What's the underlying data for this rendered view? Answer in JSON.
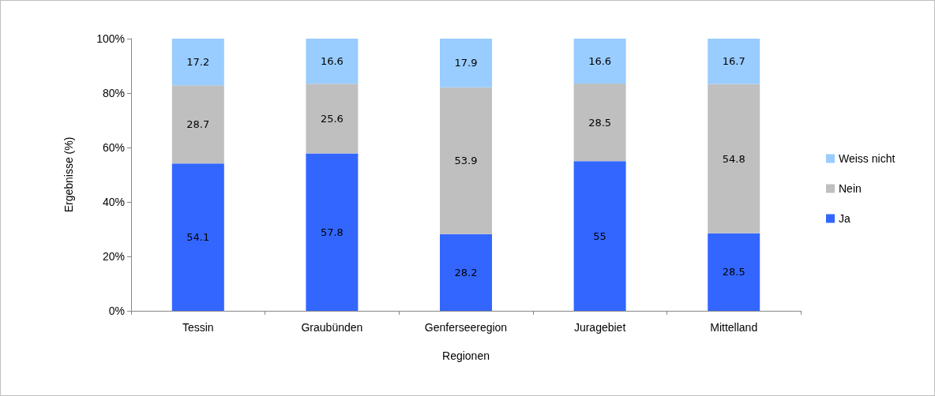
{
  "chart_data": {
    "type": "bar",
    "stacked": true,
    "xlabel": "Regionen",
    "ylabel": "Ergebnisse (%)",
    "categories": [
      "Tessin",
      "Graubünden",
      "Genferseeregion",
      "Juragebiet",
      "Mittelland"
    ],
    "series": [
      {
        "name": "Ja",
        "color": "#3366ff",
        "values": [
          54.1,
          57.8,
          28.2,
          55,
          28.5
        ]
      },
      {
        "name": "Nein",
        "color": "#bfbfbf",
        "values": [
          28.7,
          25.6,
          53.9,
          28.5,
          54.8
        ]
      },
      {
        "name": "Weiss nicht",
        "color": "#99ccff",
        "values": [
          17.2,
          16.6,
          17.9,
          16.6,
          16.7
        ]
      }
    ],
    "ylim": [
      0,
      100
    ],
    "yticks": [
      {
        "value": 0,
        "label": "0%"
      },
      {
        "value": 20,
        "label": "20%"
      },
      {
        "value": 40,
        "label": "40%"
      },
      {
        "value": 60,
        "label": "60%"
      },
      {
        "value": 80,
        "label": "80%"
      },
      {
        "value": 100,
        "label": "100%"
      }
    ],
    "data_labels": true,
    "legend": "right",
    "grid": false
  }
}
